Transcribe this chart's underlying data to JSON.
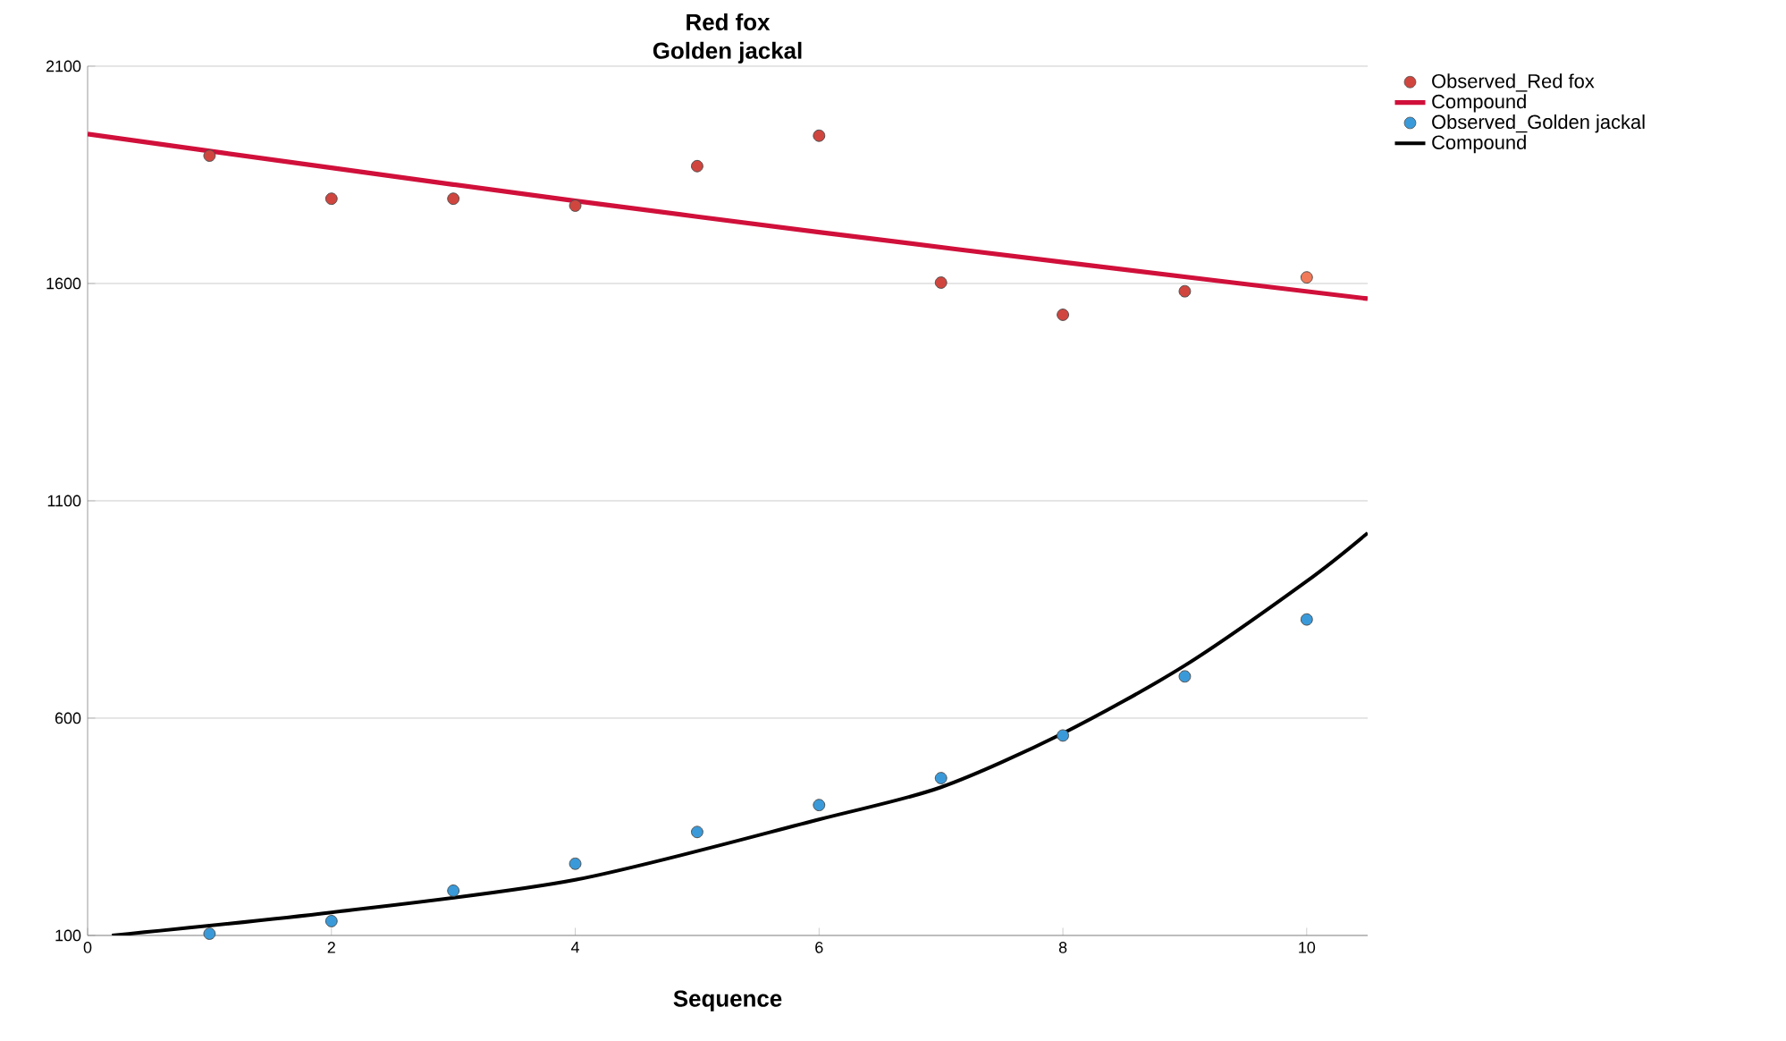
{
  "chart_data": {
    "type": "scatter",
    "title": "Red fox",
    "subtitle": "Golden jackal",
    "xlabel": "Sequence",
    "xlim": [
      0,
      10.5
    ],
    "ylim": [
      100,
      2100
    ],
    "xticks": [
      0,
      2,
      4,
      6,
      8,
      10
    ],
    "yticks": [
      100,
      600,
      1100,
      1600,
      2100
    ],
    "grid": "y",
    "legend": "top right",
    "series": [
      {
        "name": "Observed_Red fox",
        "marker": "circle",
        "color": "#d0463f",
        "colors": [
          "#d0463f",
          "#d0463f",
          "#d0463f",
          "#d0463f",
          "#d0463f",
          "#d0463f",
          "#d0463f",
          "#d0463f",
          "#d0463f",
          "#f07a5a"
        ],
        "x": [
          1,
          2,
          3,
          4,
          5,
          6,
          7,
          8,
          9,
          10
        ],
        "values": [
          1894,
          1795,
          1795,
          1779,
          1870,
          1940,
          1602,
          1528,
          1582,
          1614
        ]
      },
      {
        "name": "Compound",
        "type": "line",
        "marker": "none",
        "color": "#d0103a",
        "x": [
          0,
          2,
          4,
          6,
          8,
          10.5
        ],
        "values": [
          1944,
          1866,
          1790,
          1718,
          1649,
          1565
        ]
      },
      {
        "name": "Observed_Golden jackal",
        "marker": "circle",
        "color": "#3a9ad9",
        "x": [
          1,
          2,
          3,
          4,
          5,
          6,
          7,
          8,
          9,
          10
        ],
        "values": [
          104,
          133,
          203,
          265,
          338,
          400,
          462,
          560,
          696,
          827
        ]
      },
      {
        "name": "Compound",
        "type": "line",
        "marker": "none",
        "color": "#000000",
        "x": [
          0.2,
          2,
          4,
          6,
          7,
          8,
          9,
          10,
          10.5
        ],
        "values": [
          100,
          153,
          228,
          367,
          441,
          565,
          721,
          915,
          1026
        ]
      }
    ]
  }
}
